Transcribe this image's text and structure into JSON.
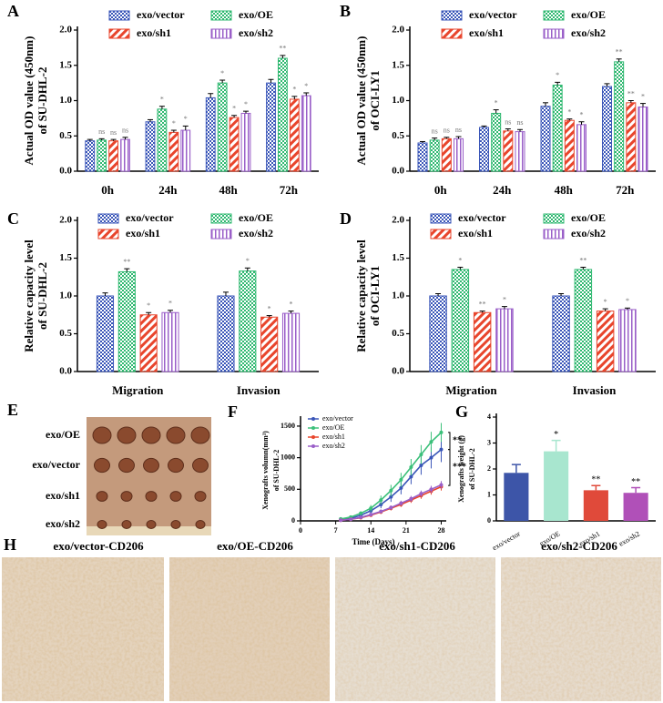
{
  "chart_data": [
    {
      "type": "grouped_bar",
      "panel_label": "A",
      "y_label": [
        "Actual OD value (450nm)",
        "of SU-DHL-2"
      ],
      "categories": [
        "0h",
        "24h",
        "48h",
        "72h"
      ],
      "ylim": [
        0,
        2
      ],
      "yticks": [
        {
          "value": 0,
          "label": "0.0"
        },
        {
          "value": 0.5,
          "label": "0.5"
        },
        {
          "value": 1,
          "label": "1.0"
        },
        {
          "value": 1.5,
          "label": "1.5"
        },
        {
          "value": 2,
          "label": "2.0"
        }
      ],
      "series": [
        {
          "name": "exo/vector",
          "color": "#3a56b8",
          "values": [
            0.43,
            0.7,
            1.04,
            1.25
          ],
          "errors": [
            0.02,
            0.03,
            0.06,
            0.05
          ]
        },
        {
          "name": "exo/OE",
          "color": "#2fb870",
          "values": [
            0.44,
            0.88,
            1.25,
            1.6
          ],
          "errors": [
            0.02,
            0.04,
            0.04,
            0.04
          ],
          "markers": [
            "ns",
            "*",
            "*",
            "**"
          ]
        },
        {
          "name": "exo/sh1",
          "color": "#e8452c",
          "values": [
            0.43,
            0.55,
            0.76,
            1.02
          ],
          "errors": [
            0.02,
            0.03,
            0.03,
            0.04
          ],
          "markers": [
            "ns",
            "*",
            "*",
            "*"
          ]
        },
        {
          "name": "exo/sh2",
          "color": "#9a5fc8",
          "values": [
            0.45,
            0.58,
            0.82,
            1.07
          ],
          "errors": [
            0.03,
            0.06,
            0.03,
            0.04
          ],
          "markers": [
            "ns",
            "*",
            "*",
            "*"
          ]
        }
      ]
    },
    {
      "type": "grouped_bar",
      "panel_label": "B",
      "y_label": [
        "Actual OD value (450nm)",
        "of OCI-LY1"
      ],
      "categories": [
        "0h",
        "24h",
        "48h",
        "72h"
      ],
      "ylim": [
        0,
        2
      ],
      "yticks": [
        {
          "value": 0,
          "label": "0.0"
        },
        {
          "value": 0.5,
          "label": "0.5"
        },
        {
          "value": 1,
          "label": "1.0"
        },
        {
          "value": 1.5,
          "label": "1.5"
        },
        {
          "value": 2,
          "label": "2.0"
        }
      ],
      "series": [
        {
          "name": "exo/vector",
          "color": "#3a56b8",
          "values": [
            0.4,
            0.62,
            0.92,
            1.2
          ],
          "errors": [
            0.02,
            0.02,
            0.05,
            0.04
          ]
        },
        {
          "name": "exo/OE",
          "color": "#2fb870",
          "values": [
            0.44,
            0.82,
            1.22,
            1.55
          ],
          "errors": [
            0.03,
            0.05,
            0.04,
            0.04
          ],
          "markers": [
            "ns",
            "*",
            "*",
            "**"
          ]
        },
        {
          "name": "exo/sh1",
          "color": "#e8452c",
          "values": [
            0.46,
            0.57,
            0.72,
            0.97
          ],
          "errors": [
            0.02,
            0.03,
            0.02,
            0.03
          ],
          "markers": [
            "ns",
            "ns",
            "*",
            "**"
          ]
        },
        {
          "name": "exo/sh2",
          "color": "#9a5fc8",
          "values": [
            0.46,
            0.56,
            0.66,
            0.91
          ],
          "errors": [
            0.03,
            0.03,
            0.04,
            0.05
          ],
          "markers": [
            "ns",
            "ns",
            "*",
            "*"
          ]
        }
      ]
    },
    {
      "type": "grouped_bar",
      "panel_label": "C",
      "y_label": [
        "Relative capacity  level",
        "of SU-DHL-2"
      ],
      "categories": [
        "Migration",
        "Invasion"
      ],
      "ylim": [
        0,
        2
      ],
      "yticks": [
        {
          "value": 0,
          "label": "0.0"
        },
        {
          "value": 0.5,
          "label": "0.5"
        },
        {
          "value": 1,
          "label": "1.0"
        },
        {
          "value": 1.5,
          "label": "1.5"
        },
        {
          "value": 2,
          "label": "2.0"
        }
      ],
      "series": [
        {
          "name": "exo/vector",
          "color": "#3a56b8",
          "values": [
            1.0,
            1.0
          ],
          "errors": [
            0.04,
            0.05
          ]
        },
        {
          "name": "exo/OE",
          "color": "#2fb870",
          "values": [
            1.32,
            1.33
          ],
          "errors": [
            0.04,
            0.04
          ],
          "markers": [
            "**",
            "*"
          ]
        },
        {
          "name": "exo/sh1",
          "color": "#e8452c",
          "values": [
            0.75,
            0.72
          ],
          "errors": [
            0.03,
            0.02
          ],
          "markers": [
            "*",
            "*"
          ]
        },
        {
          "name": "exo/sh2",
          "color": "#9a5fc8",
          "values": [
            0.78,
            0.77
          ],
          "errors": [
            0.03,
            0.03
          ],
          "markers": [
            "*",
            "*"
          ]
        }
      ]
    },
    {
      "type": "grouped_bar",
      "panel_label": "D",
      "y_label": [
        "Relative capacity  level",
        "of OCI-LY1"
      ],
      "categories": [
        "Migration",
        "Invasion"
      ],
      "ylim": [
        0,
        2
      ],
      "yticks": [
        {
          "value": 0,
          "label": "0.0"
        },
        {
          "value": 0.5,
          "label": "0.5"
        },
        {
          "value": 1,
          "label": "1.0"
        },
        {
          "value": 1.5,
          "label": "1.5"
        },
        {
          "value": 2,
          "label": "2.0"
        }
      ],
      "series": [
        {
          "name": "exo/vector",
          "color": "#3a56b8",
          "values": [
            1.0,
            1.0
          ],
          "errors": [
            0.03,
            0.03
          ]
        },
        {
          "name": "exo/OE",
          "color": "#2fb870",
          "values": [
            1.35,
            1.35
          ],
          "errors": [
            0.03,
            0.03
          ],
          "markers": [
            "*",
            "**"
          ]
        },
        {
          "name": "exo/sh1",
          "color": "#e8452c",
          "values": [
            0.78,
            0.8
          ],
          "errors": [
            0.02,
            0.03
          ],
          "markers": [
            "**",
            "*"
          ]
        },
        {
          "name": "exo/sh2",
          "color": "#9a5fc8",
          "values": [
            0.83,
            0.82
          ],
          "errors": [
            0.03,
            0.02
          ],
          "markers": [
            "*",
            "*"
          ]
        }
      ]
    },
    {
      "type": "line",
      "panel_label": "F",
      "x_label": "Time (Days)",
      "y_label": [
        "Xenografts volumn(mm³)",
        "of SU-DHL-2"
      ],
      "x": [
        8,
        10,
        12,
        14,
        16,
        18,
        20,
        22,
        24,
        26,
        28
      ],
      "xlim": [
        0,
        29
      ],
      "xticks": [
        0,
        7,
        14,
        21,
        28
      ],
      "ylim": [
        0,
        1600
      ],
      "yticks": [
        0,
        500,
        1000,
        1500
      ],
      "annotations": [
        "**",
        "***"
      ],
      "series": [
        {
          "name": "exo/vector",
          "color": "#3a56b8",
          "values": [
            20,
            40,
            90,
            160,
            260,
            380,
            520,
            700,
            880,
            1000,
            1130
          ],
          "errors": [
            10,
            15,
            25,
            40,
            60,
            80,
            100,
            120,
            150,
            170,
            200
          ]
        },
        {
          "name": "exo/OE",
          "color": "#3cc07a",
          "values": [
            30,
            60,
            120,
            200,
            330,
            480,
            650,
            850,
            1050,
            1250,
            1400
          ],
          "errors": [
            10,
            20,
            30,
            50,
            70,
            90,
            110,
            130,
            150,
            160,
            150
          ]
        },
        {
          "name": "exo/sh1",
          "color": "#e8452c",
          "values": [
            10,
            25,
            50,
            90,
            140,
            200,
            260,
            330,
            400,
            470,
            540
          ],
          "errors": [
            5,
            10,
            15,
            20,
            30,
            35,
            40,
            45,
            50,
            55,
            60
          ]
        },
        {
          "name": "exo/sh2",
          "color": "#9a5fc8",
          "values": [
            10,
            25,
            55,
            100,
            150,
            210,
            280,
            350,
            430,
            500,
            570
          ],
          "errors": [
            5,
            10,
            15,
            20,
            30,
            35,
            40,
            45,
            50,
            55,
            60
          ]
        }
      ]
    },
    {
      "type": "bar",
      "panel_label": "G",
      "y_label": [
        "Xenografts weight (g)",
        "of SU-DHL-2"
      ],
      "categories": [
        "exo/vector",
        "exo/OE",
        "exo/sh1",
        "exo/sh2"
      ],
      "values": [
        1.85,
        2.68,
        1.18,
        1.08
      ],
      "errors": [
        0.32,
        0.42,
        0.18,
        0.2
      ],
      "markers": [
        null,
        "*",
        "**",
        "**"
      ],
      "colors": [
        "#3d55a8",
        "#a8e6cf",
        "#e04a3a",
        "#b050b8"
      ],
      "ylim": [
        0,
        4
      ],
      "yticks": [
        0,
        1,
        2,
        3,
        4
      ]
    }
  ],
  "image_panels": {
    "E": {
      "panel_label": "E",
      "rows": [
        "exo/OE",
        "exo/vector",
        "exo/sh1",
        "exo/sh2"
      ]
    },
    "H": {
      "panel_label": "H",
      "titles": [
        "exo/vector-CD206",
        "exo/OE-CD206",
        "exo/sh1-CD206",
        "exo/sh2-CD206"
      ]
    }
  }
}
